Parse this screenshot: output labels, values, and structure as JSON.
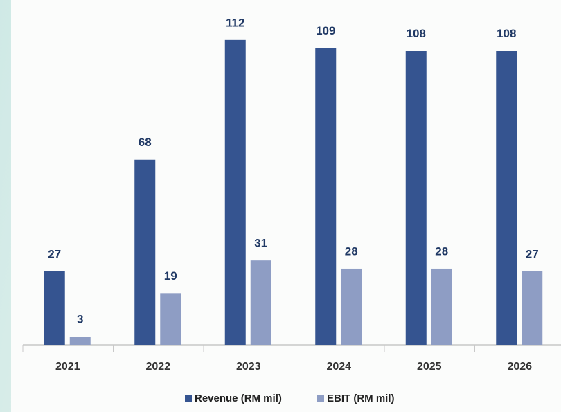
{
  "chart_data": {
    "type": "bar",
    "categories": [
      "2021",
      "2022",
      "2023",
      "2024",
      "2025",
      "2026"
    ],
    "series": [
      {
        "name": "Revenue (RM mil)",
        "color": "#355490",
        "values": [
          27,
          68,
          112,
          109,
          108,
          108
        ]
      },
      {
        "name": "EBIT (RM mil)",
        "color": "#8e9dc4",
        "values": [
          3,
          19,
          31,
          28,
          28,
          27
        ]
      }
    ],
    "legend": "bottom"
  }
}
